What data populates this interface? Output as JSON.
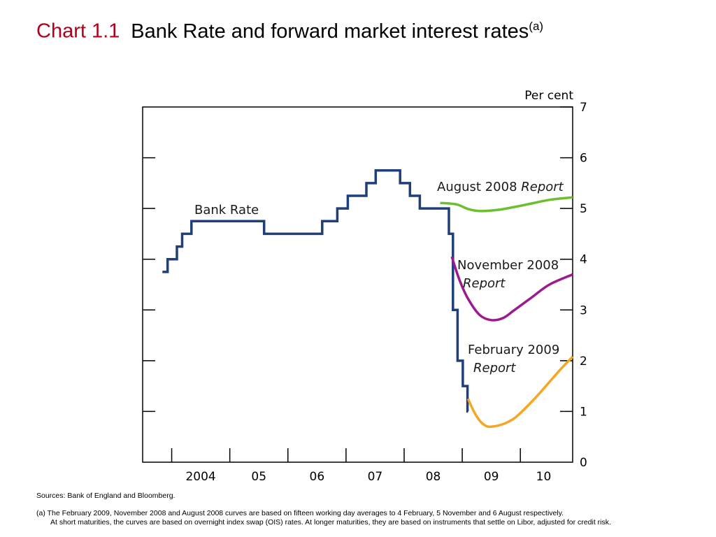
{
  "title": {
    "label": "Chart 1.1",
    "text": "Bank Rate and forward market interest rates",
    "footnote_mark": "(a)"
  },
  "chart_data": {
    "type": "line",
    "ylabel": "Per cent",
    "ylim": [
      0,
      7
    ],
    "yticks": [
      "0",
      "1",
      "2",
      "3",
      "4",
      "5",
      "6",
      "7"
    ],
    "xlim": [
      2003.5,
      2010.9
    ],
    "x_tick_labels": [
      {
        "x": 2004.5,
        "label": "2004"
      },
      {
        "x": 2005.5,
        "label": "05"
      },
      {
        "x": 2006.5,
        "label": "06"
      },
      {
        "x": 2007.5,
        "label": "07"
      },
      {
        "x": 2008.5,
        "label": "08"
      },
      {
        "x": 2009.5,
        "label": "09"
      },
      {
        "x": 2010.4,
        "label": "10"
      }
    ],
    "x_year_boundaries": [
      2004,
      2005,
      2006,
      2007,
      2008,
      2009,
      2010
    ],
    "grid": false,
    "series": [
      {
        "name": "Bank Rate",
        "color": "#1f3f7a",
        "step": true,
        "points": [
          [
            2003.84,
            3.75
          ],
          [
            2003.93,
            4.0
          ],
          [
            2004.09,
            4.25
          ],
          [
            2004.18,
            4.5
          ],
          [
            2004.34,
            4.75
          ],
          [
            2005.59,
            4.5
          ],
          [
            2006.59,
            4.75
          ],
          [
            2006.85,
            5.0
          ],
          [
            2007.03,
            5.25
          ],
          [
            2007.35,
            5.5
          ],
          [
            2007.51,
            5.75
          ],
          [
            2007.93,
            5.5
          ],
          [
            2008.1,
            5.25
          ],
          [
            2008.27,
            5.0
          ],
          [
            2008.77,
            4.5
          ],
          [
            2008.84,
            3.0
          ],
          [
            2008.92,
            2.0
          ],
          [
            2009.01,
            1.5
          ],
          [
            2009.09,
            1.0
          ],
          [
            2009.1,
            1.0
          ]
        ]
      },
      {
        "name": "August 2008 Report",
        "color": "#6cbf2f",
        "step": false,
        "points": [
          [
            2008.62,
            5.11
          ],
          [
            2008.9,
            5.08
          ],
          [
            2009.1,
            4.99
          ],
          [
            2009.3,
            4.95
          ],
          [
            2009.6,
            4.97
          ],
          [
            2009.9,
            5.03
          ],
          [
            2010.2,
            5.1
          ],
          [
            2010.5,
            5.17
          ],
          [
            2010.9,
            5.22
          ]
        ]
      },
      {
        "name": "November 2008 Report",
        "color": "#9b1a8c",
        "step": false,
        "points": [
          [
            2008.82,
            4.05
          ],
          [
            2008.95,
            3.6
          ],
          [
            2009.1,
            3.22
          ],
          [
            2009.3,
            2.9
          ],
          [
            2009.5,
            2.8
          ],
          [
            2009.7,
            2.84
          ],
          [
            2009.9,
            3.0
          ],
          [
            2010.2,
            3.25
          ],
          [
            2010.5,
            3.5
          ],
          [
            2010.9,
            3.7
          ]
        ]
      },
      {
        "name": "February 2009 Report",
        "color": "#f5a623",
        "step": false,
        "points": [
          [
            2009.1,
            1.25
          ],
          [
            2009.2,
            1.0
          ],
          [
            2009.3,
            0.82
          ],
          [
            2009.4,
            0.72
          ],
          [
            2009.5,
            0.7
          ],
          [
            2009.7,
            0.75
          ],
          [
            2009.9,
            0.87
          ],
          [
            2010.1,
            1.08
          ],
          [
            2010.3,
            1.32
          ],
          [
            2010.5,
            1.58
          ],
          [
            2010.7,
            1.84
          ],
          [
            2010.9,
            2.08
          ]
        ]
      }
    ],
    "annotations": [
      {
        "series": "Bank Rate",
        "lines": [
          {
            "text": "Bank Rate",
            "italic": false
          }
        ]
      },
      {
        "series": "August 2008 Report",
        "lines": [
          {
            "text": "August 2008 ",
            "italic": false,
            "tail": "Report"
          }
        ]
      },
      {
        "series": "November 2008 Report",
        "lines": [
          {
            "text": "November 2008",
            "italic": false
          },
          {
            "text": "Report",
            "italic": true
          }
        ]
      },
      {
        "series": "February 2009 Report",
        "lines": [
          {
            "text": "February 2009",
            "italic": false
          },
          {
            "text": "Report",
            "italic": true
          }
        ]
      }
    ]
  },
  "footer": {
    "sources": "Sources:  Bank of England and Bloomberg.",
    "note_line1": "(a)  The February 2009, November 2008 and August 2008 curves are based on fifteen working day averages to 4 February, 5 November and 6 August respectively.",
    "note_line2": "At short maturities, the curves are based on overnight index swap (OIS) rates.  At longer maturities, they are based on instruments that settle on Libor, adjusted for credit risk."
  }
}
